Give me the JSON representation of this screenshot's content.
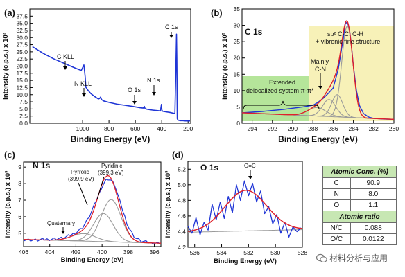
{
  "colors": {
    "data": "#1f35d6",
    "fit": "#e0202a",
    "component": "#9a9a9a",
    "green_box": "#b5e59a",
    "yellow_box": "#f7f1b8",
    "table_header": "#c7e7b3"
  },
  "panels": {
    "a": {
      "letter": "(a)"
    },
    "b": {
      "letter": "(b)",
      "title": "C 1s",
      "ann_sp2_line1": "sp² C-C, C-H",
      "ann_sp2_line2": "+ vibronic fine structure",
      "ann_cn_line1": "Mainly",
      "ann_cn_line2": "C-N",
      "ann_ext_line1": "Extended",
      "ann_ext_line2": "delocalized system π-π*"
    },
    "c": {
      "letter": "(c)",
      "title": "N 1s",
      "ann_pyrrolic_line1": "Pyrrolic",
      "ann_pyrrolic_line2": "(399.9 eV)",
      "ann_pyridinic_line1": "Pyridinic",
      "ann_pyridinic_line2": "(399.3 eV)",
      "ann_quaternary": "Quaternary"
    },
    "d": {
      "letter": "(d)",
      "title": "O 1s",
      "ann_oc": "O=C"
    }
  },
  "chart_data": [
    {
      "panel": "a",
      "type": "line",
      "xlabel": "Binding Energy (eV)",
      "ylabel": "Intensity (c.p.s.) x 10³",
      "xlim": [
        1400,
        180
      ],
      "ylim": [
        0,
        40
      ],
      "xticks": [
        1000,
        800,
        600,
        400,
        200
      ],
      "yticks": [
        0.0,
        2.5,
        5.0,
        7.5,
        10.0,
        12.5,
        15.0,
        17.5,
        20.0,
        22.5,
        25.0,
        27.5,
        30.0,
        32.5,
        35.0,
        37.5
      ],
      "x": [
        1380,
        1300,
        1220,
        1140,
        1060,
        1010,
        990,
        980,
        975,
        970,
        960,
        940,
        910,
        880,
        870,
        863,
        856,
        840,
        800,
        740,
        680,
        620,
        560,
        540,
        532,
        526,
        510,
        470,
        430,
        410,
        402,
        398,
        392,
        370,
        340,
        300,
        292,
        288,
        285,
        282,
        278,
        270,
        260,
        240,
        220,
        200,
        185
      ],
      "y": [
        26.8,
        24.5,
        22.6,
        21.0,
        19.4,
        18.5,
        20.4,
        16.0,
        12.6,
        12.3,
        11.6,
        10.5,
        9.4,
        8.5,
        8.7,
        9.2,
        8.3,
        7.8,
        7.3,
        6.7,
        6.3,
        5.9,
        5.4,
        5.3,
        5.9,
        5.1,
        4.9,
        4.6,
        4.4,
        4.3,
        6.6,
        4.5,
        4.2,
        4.0,
        3.8,
        3.4,
        20.5,
        31.2,
        22.0,
        1.6,
        1.2,
        1.0,
        0.9,
        0.9,
        0.8,
        0.8,
        0.8
      ],
      "annotations": [
        "C KLL",
        "N KLL",
        "O 1s",
        "N 1s",
        "C 1s"
      ]
    },
    {
      "panel": "b",
      "type": "line",
      "xlabel": "Binding Energy (eV)",
      "ylabel": "Intensity (c.p.s.) x 10³",
      "xlim": [
        295,
        280
      ],
      "ylim": [
        0,
        35
      ],
      "xticks": [
        294,
        292,
        290,
        288,
        286,
        284,
        282,
        280
      ],
      "yticks": [
        0,
        5,
        10,
        15,
        20,
        25,
        30,
        35
      ],
      "data_x": [
        295,
        294,
        293,
        292,
        291,
        290,
        289,
        288,
        287.5,
        287,
        286.5,
        286,
        285.5,
        285,
        284.8,
        284.6,
        284.4,
        284.2,
        284,
        283.7,
        283.4,
        283,
        282.5,
        282,
        281,
        280
      ],
      "data_y": [
        3.2,
        3.4,
        3.6,
        3.9,
        4.2,
        4.6,
        5.0,
        5.5,
        6.4,
        7.6,
        9.1,
        10.8,
        16.5,
        26.0,
        30.5,
        31.0,
        29.0,
        24.0,
        17.5,
        10.0,
        5.4,
        3.0,
        1.9,
        1.5,
        1.3,
        1.2
      ],
      "components": [
        {
          "center": 284.6,
          "height": 28.0,
          "width": 0.55
        },
        {
          "center": 285.6,
          "height": 6.8,
          "width": 0.55
        },
        {
          "center": 286.4,
          "height": 5.2,
          "width": 0.65
        },
        {
          "center": 287.6,
          "height": 2.6,
          "width": 0.9
        }
      ]
    },
    {
      "panel": "c",
      "type": "line",
      "xlabel": "Binding Energy (eV)",
      "ylabel": "Intensity (c.p.s.) x 10³",
      "xlim": [
        406,
        395.5
      ],
      "ylim": [
        4.2,
        9.3
      ],
      "xticks": [
        406,
        404,
        402,
        400,
        398,
        396
      ],
      "yticks": [
        5,
        6,
        7,
        8,
        9
      ],
      "data_x": [
        406,
        405,
        404,
        403,
        402.5,
        402,
        401.5,
        401,
        400.5,
        400,
        399.7,
        399.5,
        399.3,
        399,
        398.5,
        398,
        397.5,
        397,
        396.5,
        396,
        395.5
      ],
      "data_y": [
        4.62,
        4.58,
        4.65,
        4.7,
        4.85,
        5.05,
        5.35,
        5.95,
        6.85,
        7.85,
        8.2,
        8.3,
        8.2,
        7.85,
        6.55,
        5.4,
        4.75,
        4.52,
        4.45,
        4.42,
        4.4
      ],
      "components": [
        {
          "name": "Pyrrolic",
          "center": 399.9,
          "height": 1.7,
          "width": 0.75
        },
        {
          "name": "Pyridinic",
          "center": 399.3,
          "height": 2.55,
          "width": 0.75
        },
        {
          "name": "Quaternary",
          "center": 401.4,
          "height": 0.45,
          "width": 0.9
        }
      ]
    },
    {
      "panel": "d",
      "type": "line",
      "xlabel": "Binding Energy (eV)",
      "ylabel": "Intensity (c.p.s.) x 10³",
      "xlim": [
        536.5,
        528
      ],
      "ylim": [
        4.2,
        5.3
      ],
      "xticks": [
        536,
        534,
        532,
        530,
        528
      ],
      "yticks": [
        4.2,
        4.4,
        4.6,
        4.8,
        5.0,
        5.2
      ],
      "data_x": [
        536.5,
        536.2,
        535.9,
        535.6,
        535.3,
        535.0,
        534.7,
        534.4,
        534.1,
        533.8,
        533.5,
        533.2,
        532.9,
        532.6,
        532.3,
        532.0,
        531.7,
        531.4,
        531.1,
        530.8,
        530.5,
        530.2,
        529.9,
        529.6,
        529.3,
        529.0,
        528.7,
        528.4,
        528.1
      ],
      "data_y": [
        4.47,
        4.38,
        4.58,
        4.36,
        4.52,
        4.42,
        4.75,
        4.55,
        4.78,
        4.57,
        4.85,
        4.64,
        5.0,
        4.8,
        5.05,
        4.86,
        5.02,
        4.78,
        4.92,
        4.63,
        4.72,
        4.5,
        4.62,
        4.38,
        4.52,
        4.33,
        4.46,
        4.4,
        4.45
      ],
      "fit_center": 532.2,
      "fit_height": 0.52,
      "fit_width": 1.55,
      "baseline": 4.41,
      "baseline_slope": -0.004
    }
  ],
  "table": {
    "header1": "Atomic Conc. (%)",
    "rows1": [
      {
        "el": "C",
        "val": "90.9"
      },
      {
        "el": "N",
        "val": "8.0"
      },
      {
        "el": "O",
        "val": "1.1"
      }
    ],
    "header2": "Atomic ratio",
    "rows2": [
      {
        "el": "N/C",
        "val": "0.088"
      },
      {
        "el": "O/C",
        "val": "0.0122"
      }
    ]
  },
  "watermark": "材料分析与应用"
}
